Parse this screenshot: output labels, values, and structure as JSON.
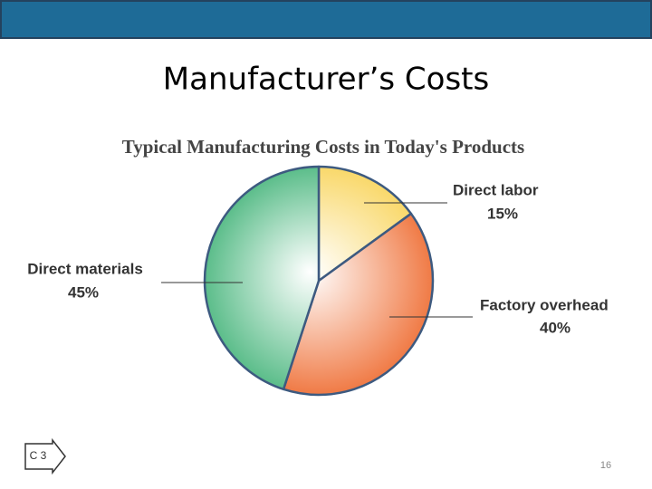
{
  "slide": {
    "title": "Manufacturer’s Costs",
    "badge": "C 3",
    "page_number": "16"
  },
  "chart_data": {
    "type": "pie",
    "title": "Typical Manufacturing Costs in Today's Products",
    "categories": [
      "Direct labor",
      "Factory overhead",
      "Direct materials"
    ],
    "values": [
      15,
      40,
      45
    ],
    "value_labels": [
      "15%",
      "40%",
      "45%"
    ],
    "colors": [
      "#f9d86a",
      "#f07a45",
      "#5bbd8a"
    ]
  }
}
